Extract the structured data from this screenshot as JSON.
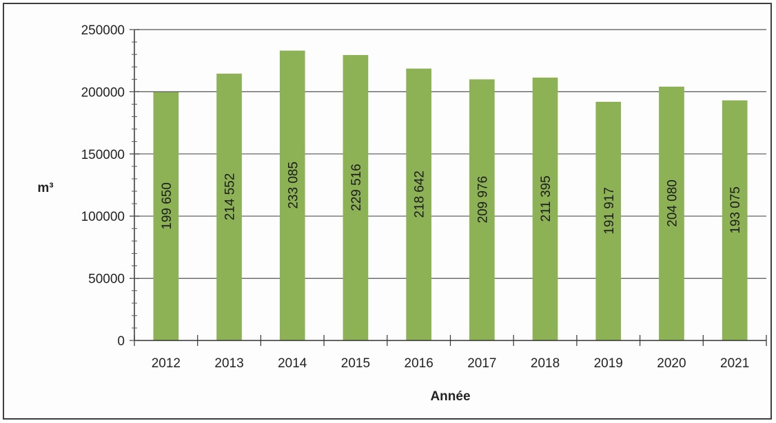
{
  "chart_data": {
    "type": "bar",
    "title": "",
    "xlabel": "Année",
    "ylabel": "m³",
    "categories": [
      "2012",
      "2013",
      "2014",
      "2015",
      "2016",
      "2017",
      "2018",
      "2019",
      "2020",
      "2021"
    ],
    "values": [
      199650,
      214552,
      233085,
      229516,
      218642,
      209976,
      211395,
      191917,
      204080,
      193075
    ],
    "data_labels": [
      "199 650",
      "214 552",
      "233 085",
      "229 516",
      "218 642",
      "209 976",
      "211 395",
      "191 917",
      "204 080",
      "193 075"
    ],
    "yticks": [
      "0",
      "50000",
      "100000",
      "150000",
      "200000",
      "250000"
    ],
    "ylim": [
      0,
      250000
    ],
    "grid": true,
    "legend": "none",
    "bar_color": "#8db255",
    "grid_color": "#555555"
  }
}
